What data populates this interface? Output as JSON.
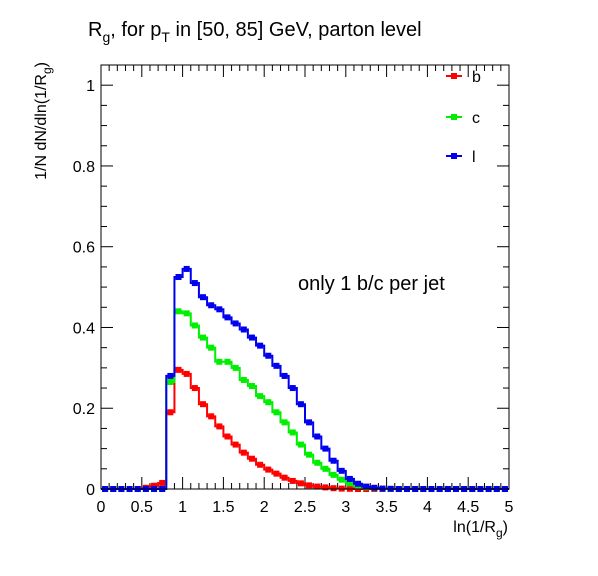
{
  "chart_data": {
    "type": "histogram",
    "title": {
      "main": "R",
      "main_sub": "g",
      "mid": ", for p",
      "mid_sub": "T",
      "rest": " in [50, 85] GeV, parton level"
    },
    "xlabel": {
      "main": "ln(1/R",
      "sub": "g",
      "close": ")"
    },
    "ylabel": {
      "main": "1/N dN/dln(1/R",
      "sub": "g",
      "close": ")"
    },
    "annotation": "only 1 b/c per jet",
    "xlim": [
      0,
      5
    ],
    "ylim": [
      0,
      1.05
    ],
    "x_ticks": [
      0,
      0.5,
      1,
      1.5,
      2,
      2.5,
      3,
      3.5,
      4,
      4.5,
      5
    ],
    "x_tick_labels": [
      "0",
      "0.5",
      "1",
      "1.5",
      "2",
      "2.5",
      "3",
      "3.5",
      "4",
      "4.5",
      "5"
    ],
    "y_ticks": [
      0,
      0.2,
      0.4,
      0.6,
      0.8,
      1
    ],
    "y_tick_labels": [
      "0",
      "0.2",
      "0.4",
      "0.6",
      "0.8",
      "1"
    ],
    "bin_edges": [
      0,
      0.1,
      0.2,
      0.3,
      0.4,
      0.5,
      0.6,
      0.7,
      0.8,
      0.9,
      1.0,
      1.1,
      1.2,
      1.3,
      1.4,
      1.5,
      1.6,
      1.7,
      1.8,
      1.9,
      2.0,
      2.1,
      2.2,
      2.3,
      2.4,
      2.5,
      2.6,
      2.7,
      2.8,
      2.9,
      3.0,
      3.1,
      3.2,
      3.3,
      3.4,
      3.5,
      3.6,
      3.7,
      3.8,
      3.9,
      4.0,
      4.1,
      4.2,
      4.3,
      4.4,
      4.5,
      4.6,
      4.7,
      4.8,
      4.9,
      5.0
    ],
    "legend_position": "top-right",
    "series": [
      {
        "name": "b",
        "color": "#ff0000",
        "values": [
          0,
          0,
          0,
          0,
          0,
          0.003,
          0.008,
          0.015,
          0.19,
          0.295,
          0.285,
          0.25,
          0.21,
          0.18,
          0.155,
          0.13,
          0.11,
          0.09,
          0.075,
          0.06,
          0.048,
          0.038,
          0.028,
          0.02,
          0.014,
          0.009,
          0.006,
          0.004,
          0.002,
          0.001,
          0.0005,
          0,
          0,
          0,
          0,
          0,
          0,
          0,
          0,
          0,
          0,
          0,
          0,
          0,
          0,
          0,
          0,
          0,
          0,
          0
        ]
      },
      {
        "name": "c",
        "color": "#00ee00",
        "values": [
          0,
          0,
          0,
          0,
          0,
          0,
          0,
          0,
          0.265,
          0.44,
          0.435,
          0.405,
          0.375,
          0.35,
          0.315,
          0.315,
          0.3,
          0.27,
          0.255,
          0.23,
          0.215,
          0.19,
          0.165,
          0.14,
          0.11,
          0.085,
          0.065,
          0.05,
          0.035,
          0.023,
          0.014,
          0.008,
          0.004,
          0.002,
          0.001,
          0,
          0,
          0,
          0,
          0,
          0,
          0,
          0,
          0,
          0,
          0,
          0,
          0,
          0,
          0
        ]
      },
      {
        "name": "l",
        "color": "#0000ee",
        "values": [
          0,
          0,
          0,
          0,
          0,
          0,
          0,
          0,
          0.28,
          0.525,
          0.545,
          0.51,
          0.475,
          0.455,
          0.445,
          0.425,
          0.41,
          0.395,
          0.375,
          0.355,
          0.33,
          0.305,
          0.28,
          0.25,
          0.21,
          0.165,
          0.13,
          0.1,
          0.07,
          0.045,
          0.025,
          0.013,
          0.006,
          0.003,
          0.001,
          0.0005,
          0,
          0,
          0,
          0,
          0,
          0,
          0,
          0,
          0,
          0,
          0,
          0,
          0,
          0
        ]
      }
    ]
  }
}
